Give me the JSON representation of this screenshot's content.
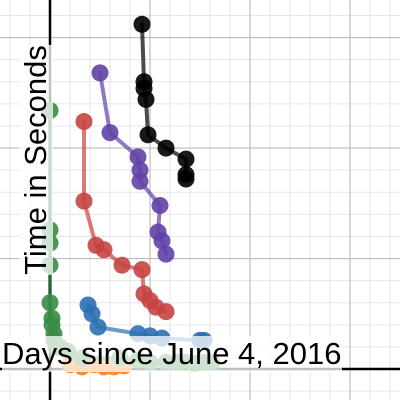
{
  "chart_data": {
    "type": "scatter",
    "title": "",
    "xlabel": "Days since June 4, 2016",
    "ylabel": "Time in Seconds",
    "grid": true,
    "xlim": [
      -2.5,
      17.5
    ],
    "ylim": [
      -1.4,
      16.7
    ],
    "series": [
      {
        "color": "#000000",
        "x": [
          4.6,
          4.7,
          4.7,
          4.8,
          4.9,
          5.8,
          6.8,
          6.8,
          6.8
        ],
        "y": [
          15.6,
          13.0,
          12.7,
          12.2,
          10.6,
          10.0,
          9.5,
          8.8,
          8.6
        ]
      },
      {
        "color": "#6042a6",
        "x": [
          2.5,
          3.0,
          4.4,
          4.5,
          4.5,
          5.5,
          5.4,
          5.6,
          5.8
        ],
        "y": [
          13.4,
          10.7,
          9.6,
          9.0,
          8.5,
          7.4,
          6.2,
          5.8,
          5.2
        ]
      },
      {
        "color": "#c74440",
        "x": [
          1.7,
          1.7,
          2.3,
          2.7,
          3.6,
          4.6,
          4.7,
          5.0,
          5.3,
          5.8
        ],
        "y": [
          11.2,
          7.6,
          5.6,
          5.4,
          4.7,
          4.5,
          3.4,
          3.1,
          2.8,
          2.6
        ]
      },
      {
        "color": "#2d70b3",
        "x": [
          1.9,
          2.1,
          2.4,
          4.4,
          5.0,
          5.6,
          7.5,
          7.7
        ],
        "y": [
          2.9,
          2.5,
          1.9,
          1.6,
          1.5,
          1.4,
          1.3,
          1.3
        ]
      },
      {
        "color": "#fa7e19",
        "x": [
          1.0,
          1.6,
          2.2,
          2.7,
          3.2,
          3.7
        ],
        "y": [
          0.2,
          0.1,
          0.2,
          0.1,
          0.1,
          0.15
        ]
      },
      {
        "color": "#388c46",
        "x": [
          0.0,
          0.0,
          0.0,
          0.0,
          0.0,
          0.1,
          0.1,
          0.2,
          0.2,
          0.3,
          0.5,
          0.9,
          1.6,
          3.5,
          4.4,
          5.0,
          5.8,
          6.3,
          6.8,
          7.2,
          7.5,
          7.8,
          8.1
        ],
        "y": [
          11.7,
          6.3,
          5.7,
          4.7,
          3.0,
          2.3,
          2.0,
          1.6,
          1.3,
          1.0,
          1.0,
          0.8,
          0.5,
          0.5,
          0.4,
          0.3,
          0.3,
          0.3,
          0.3,
          0.25,
          0.3,
          0.3,
          0.3
        ]
      }
    ]
  }
}
